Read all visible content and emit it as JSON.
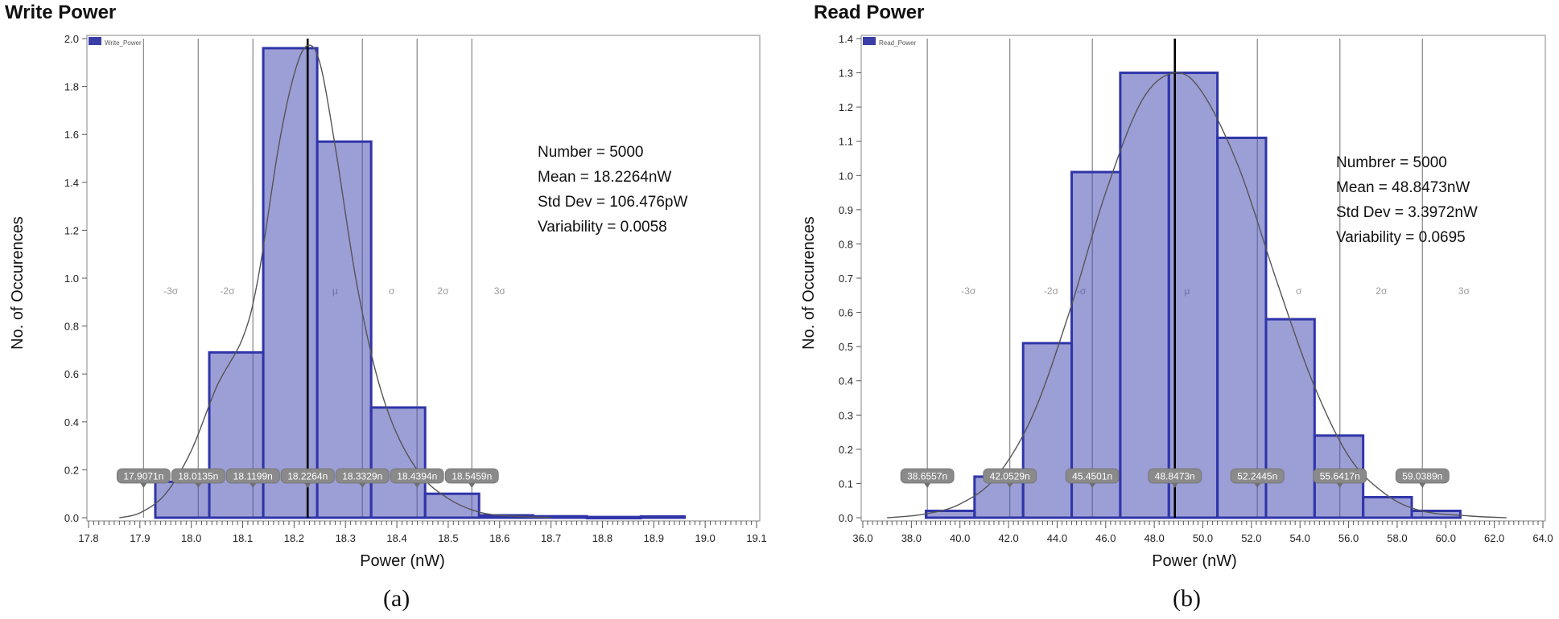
{
  "chart_data": [
    {
      "type": "bar",
      "title": "Write Power",
      "caption": "(a)",
      "legend": "Write_Power",
      "xlabel": "Power (nW)",
      "ylabel": "No. of Occurences",
      "xlim": [
        17.8,
        19.1
      ],
      "ylim": [
        0.0,
        2.0
      ],
      "xticks": [
        "17.8",
        "17.9",
        "18.0",
        "18.1",
        "18.2",
        "18.3",
        "18.4",
        "18.5",
        "18.6",
        "18.7",
        "18.8",
        "18.9",
        "19.0",
        "19.1"
      ],
      "yticks": [
        "0.0",
        "0.2",
        "0.4",
        "0.6",
        "0.8",
        "1.0",
        "1.2",
        "1.4",
        "1.6",
        "1.8",
        "2.0"
      ],
      "bins": [
        {
          "x0": 17.93,
          "x1": 18.035,
          "value": 0.15
        },
        {
          "x0": 18.035,
          "x1": 18.14,
          "value": 0.69
        },
        {
          "x0": 18.14,
          "x1": 18.245,
          "value": 1.96
        },
        {
          "x0": 18.245,
          "x1": 18.35,
          "value": 1.57
        },
        {
          "x0": 18.35,
          "x1": 18.455,
          "value": 0.46
        },
        {
          "x0": 18.455,
          "x1": 18.56,
          "value": 0.1
        },
        {
          "x0": 18.56,
          "x1": 18.665,
          "value": 0.01
        },
        {
          "x0": 18.665,
          "x1": 18.77,
          "value": 0.006
        },
        {
          "x0": 18.77,
          "x1": 18.875,
          "value": 0.003
        },
        {
          "x0": 18.875,
          "x1": 18.96,
          "value": 0.005
        }
      ],
      "curve": [
        [
          17.86,
          0.0
        ],
        [
          17.9,
          0.02
        ],
        [
          17.95,
          0.1
        ],
        [
          18.0,
          0.28
        ],
        [
          18.05,
          0.55
        ],
        [
          18.1,
          0.75
        ],
        [
          18.13,
          1.0
        ],
        [
          18.17,
          1.55
        ],
        [
          18.2,
          1.85
        ],
        [
          18.225,
          1.97
        ],
        [
          18.25,
          1.9
        ],
        [
          18.28,
          1.55
        ],
        [
          18.32,
          1.0
        ],
        [
          18.36,
          0.6
        ],
        [
          18.4,
          0.35
        ],
        [
          18.45,
          0.17
        ],
        [
          18.5,
          0.08
        ],
        [
          18.55,
          0.03
        ],
        [
          18.6,
          0.01
        ],
        [
          18.7,
          0.0
        ]
      ],
      "mean": 18.2264,
      "sigma_lines": [
        {
          "x": 17.9071,
          "label": "17.9071n"
        },
        {
          "x": 18.0135,
          "label": "18.0135n"
        },
        {
          "x": 18.1199,
          "label": "18.1199n"
        },
        {
          "x": 18.2264,
          "label": "18.2264n"
        },
        {
          "x": 18.3329,
          "label": "18.3329n"
        },
        {
          "x": 18.4394,
          "label": "18.4394n"
        },
        {
          "x": 18.5459,
          "label": "18.5459n"
        }
      ],
      "sigma_region_labels": [
        "-3σ",
        "-2σ",
        "μ",
        "σ",
        "2σ",
        "3σ"
      ],
      "sigma_region_centers": [
        17.96,
        18.07,
        18.28,
        18.39,
        18.49,
        18.6
      ],
      "stats": [
        "Number = 5000",
        "Mean = 18.2264nW",
        "Std Dev = 106.476pW",
        "Variability = 0.0058"
      ]
    },
    {
      "type": "bar",
      "title": "Read Power",
      "caption": "(b)",
      "legend": "Read_Power",
      "xlabel": "Power (nW)",
      "ylabel": "No. of Occurences",
      "xlim": [
        36.0,
        64.0
      ],
      "ylim": [
        0.0,
        1.4
      ],
      "xticks": [
        "36.0",
        "38.0",
        "40.0",
        "42.0",
        "44.0",
        "46.0",
        "48.0",
        "50.0",
        "52.0",
        "54.0",
        "56.0",
        "58.0",
        "60.0",
        "62.0",
        "64.0"
      ],
      "yticks": [
        "0.0",
        "0.1",
        "0.2",
        "0.3",
        "0.4",
        "0.5",
        "0.6",
        "0.7",
        "0.8",
        "0.9",
        "1.0",
        "1.1",
        "1.2",
        "1.3",
        "1.4"
      ],
      "bins": [
        {
          "x0": 38.6,
          "x1": 40.6,
          "value": 0.02
        },
        {
          "x0": 40.6,
          "x1": 42.6,
          "value": 0.12
        },
        {
          "x0": 42.6,
          "x1": 44.6,
          "value": 0.51
        },
        {
          "x0": 44.6,
          "x1": 46.6,
          "value": 1.01
        },
        {
          "x0": 46.6,
          "x1": 48.6,
          "value": 1.3
        },
        {
          "x0": 48.6,
          "x1": 50.6,
          "value": 1.3
        },
        {
          "x0": 50.6,
          "x1": 52.6,
          "value": 1.11
        },
        {
          "x0": 52.6,
          "x1": 54.6,
          "value": 0.58
        },
        {
          "x0": 54.6,
          "x1": 56.6,
          "value": 0.24
        },
        {
          "x0": 56.6,
          "x1": 58.6,
          "value": 0.06
        },
        {
          "x0": 58.6,
          "x1": 60.6,
          "value": 0.02
        }
      ],
      "curve": [
        [
          37.0,
          0.0
        ],
        [
          38.5,
          0.01
        ],
        [
          40.0,
          0.04
        ],
        [
          41.5,
          0.12
        ],
        [
          43.0,
          0.3
        ],
        [
          44.5,
          0.6
        ],
        [
          46.0,
          0.95
        ],
        [
          47.5,
          1.22
        ],
        [
          48.85,
          1.3
        ],
        [
          50.0,
          1.24
        ],
        [
          51.5,
          1.02
        ],
        [
          53.0,
          0.7
        ],
        [
          54.5,
          0.4
        ],
        [
          56.0,
          0.18
        ],
        [
          57.5,
          0.07
        ],
        [
          59.0,
          0.02
        ],
        [
          61.0,
          0.005
        ],
        [
          62.5,
          0.0
        ]
      ],
      "mean": 48.8473,
      "sigma_lines": [
        {
          "x": 38.6557,
          "label": "38.6557n"
        },
        {
          "x": 42.0529,
          "label": "42.0529n"
        },
        {
          "x": 45.4501,
          "label": "45.4501n"
        },
        {
          "x": 48.8473,
          "label": "48.8473n"
        },
        {
          "x": 52.2445,
          "label": "52.2445n"
        },
        {
          "x": 55.6417,
          "label": "55.6417n"
        },
        {
          "x": 59.0389,
          "label": "59.0389n"
        }
      ],
      "sigma_region_labels": [
        "-3σ",
        "-2σ",
        "-σ",
        "μ",
        "σ",
        "2σ",
        "3σ"
      ],
      "sigma_region_centers": [
        40.35,
        43.75,
        45.0,
        49.35,
        53.95,
        57.35,
        60.75
      ],
      "stats": [
        "Numbrer = 5000",
        "Mean = 48.8473nW",
        "Std Dev = 3.3972nW",
        "Variability = 0.0695"
      ]
    }
  ]
}
